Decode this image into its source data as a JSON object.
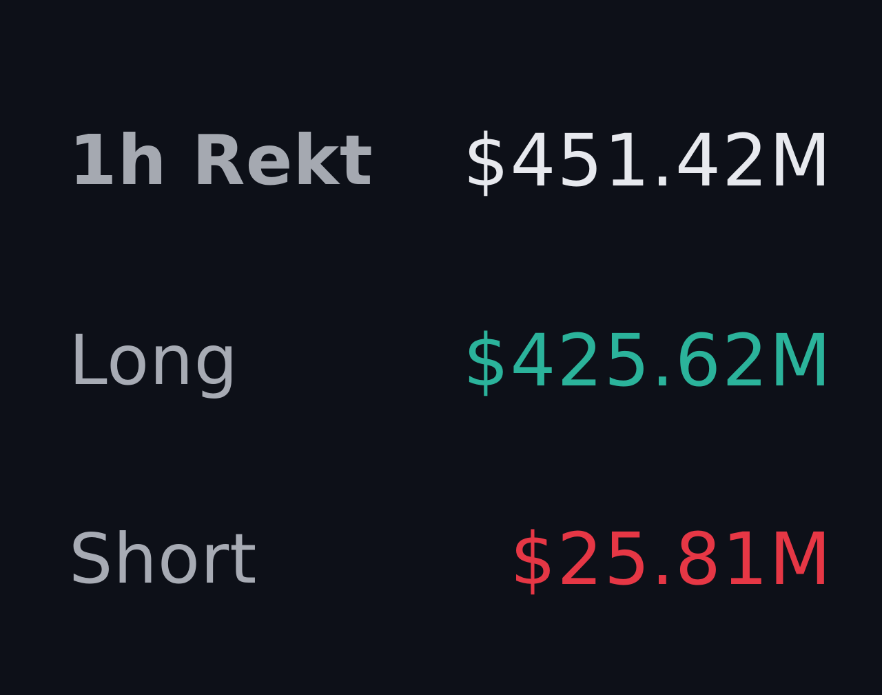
{
  "liquidations": {
    "total": {
      "label": "1h Rekt",
      "value": "$451.42M",
      "color": "#e7e9ee"
    },
    "long": {
      "label": "Long",
      "value": "$425.62M",
      "color": "#2bb39b"
    },
    "short": {
      "label": "Short",
      "value": "$25.81M",
      "color": "#e63745"
    }
  }
}
